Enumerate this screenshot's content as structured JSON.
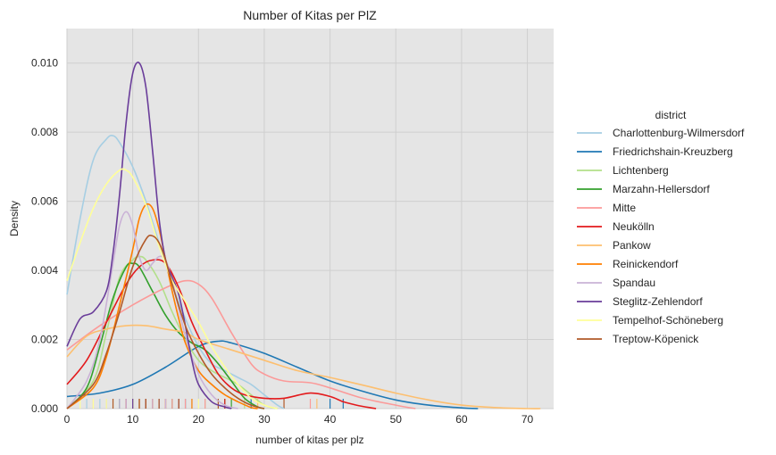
{
  "chart_data": {
    "type": "line",
    "title": "Number of Kitas per PlZ",
    "xlabel": "number of kitas per plz",
    "ylabel": "Density",
    "xlim": [
      0,
      74
    ],
    "ylim": [
      0,
      0.011
    ],
    "x_ticks": [
      0,
      10,
      20,
      30,
      40,
      50,
      60,
      70
    ],
    "y_ticks": [
      0.0,
      0.002,
      0.004,
      0.006,
      0.008,
      0.01
    ],
    "y_tick_labels": [
      "0.000",
      "0.002",
      "0.004",
      "0.006",
      "0.008",
      "0.010"
    ],
    "grid": true,
    "legend_placement": "right",
    "legend_title": "district",
    "series": [
      {
        "name": "Charlottenburg-Wilmersdorf",
        "color": "#a6cee3",
        "x": [
          0,
          2,
          4,
          6,
          7,
          8,
          10,
          12,
          14,
          16,
          18,
          20,
          22,
          24,
          26,
          28,
          30,
          32,
          33
        ],
        "y": [
          0.0033,
          0.0055,
          0.0072,
          0.0078,
          0.0079,
          0.0077,
          0.007,
          0.006,
          0.0048,
          0.0036,
          0.0026,
          0.0018,
          0.0013,
          0.0011,
          0.0009,
          0.0007,
          0.0004,
          0.0001,
          0.0
        ]
      },
      {
        "name": "Friedrichshain-Kreuzberg",
        "color": "#1f78b4",
        "x": [
          0,
          5,
          10,
          15,
          20,
          23,
          25,
          30,
          35,
          40,
          45,
          50,
          55,
          60,
          62.5
        ],
        "y": [
          0.00035,
          0.00045,
          0.0007,
          0.0012,
          0.0018,
          0.00195,
          0.0019,
          0.0016,
          0.0012,
          0.0008,
          0.0005,
          0.00025,
          0.0001,
          2e-05,
          0.0
        ]
      },
      {
        "name": "Lichtenberg",
        "color": "#b2df8a",
        "x": [
          0,
          4,
          6,
          8,
          10,
          11,
          12,
          14,
          16,
          18,
          20,
          22,
          24,
          26,
          28,
          30,
          32
        ],
        "y": [
          0.0,
          0.0008,
          0.0022,
          0.0038,
          0.0043,
          0.0044,
          0.0043,
          0.0037,
          0.0028,
          0.002,
          0.0014,
          0.0011,
          0.0009,
          0.0007,
          0.0004,
          0.0001,
          0.0
        ]
      },
      {
        "name": "Marzahn-Hellersdorf",
        "color": "#33a02c",
        "x": [
          0,
          3,
          5,
          7,
          9,
          10,
          11,
          13,
          15,
          17,
          19,
          21,
          23,
          25,
          27,
          29,
          30
        ],
        "y": [
          0.0,
          0.0006,
          0.0018,
          0.0032,
          0.0041,
          0.0042,
          0.0041,
          0.0034,
          0.0027,
          0.0022,
          0.0019,
          0.0017,
          0.0013,
          0.0008,
          0.0003,
          5e-05,
          0.0
        ]
      },
      {
        "name": "Mitte",
        "color": "#fb9a99",
        "x": [
          0,
          5,
          10,
          15,
          18,
          20,
          22,
          25,
          28,
          30,
          33,
          37,
          40,
          45,
          50,
          53
        ],
        "y": [
          0.0017,
          0.0024,
          0.003,
          0.0035,
          0.0037,
          0.0036,
          0.0032,
          0.0022,
          0.0013,
          0.001,
          0.0008,
          0.00075,
          0.0006,
          0.0003,
          0.0001,
          0.0
        ]
      },
      {
        "name": "Neukölln",
        "color": "#e31a1c",
        "x": [
          0,
          3,
          6,
          9,
          11,
          13,
          15,
          17,
          19,
          21,
          23,
          25,
          27,
          30,
          33,
          37,
          40,
          42,
          44,
          46,
          47
        ],
        "y": [
          0.0007,
          0.0014,
          0.0025,
          0.0036,
          0.0041,
          0.0043,
          0.0042,
          0.0035,
          0.0025,
          0.0017,
          0.001,
          0.0006,
          0.0004,
          0.0003,
          0.0003,
          0.00045,
          0.00035,
          0.0002,
          0.0001,
          3e-05,
          0.0
        ]
      },
      {
        "name": "Pankow",
        "color": "#fdbf6f",
        "x": [
          0,
          3,
          6,
          9,
          12,
          15,
          18,
          20,
          25,
          30,
          35,
          40,
          45,
          50,
          55,
          60,
          65,
          70,
          72
        ],
        "y": [
          0.0015,
          0.0021,
          0.0023,
          0.0024,
          0.0024,
          0.0023,
          0.0022,
          0.002,
          0.0017,
          0.0014,
          0.0011,
          0.0009,
          0.00068,
          0.00045,
          0.00025,
          0.0001,
          3e-05,
          0.0,
          0.0
        ]
      },
      {
        "name": "Reinickendorf",
        "color": "#ff7f00",
        "x": [
          0,
          4,
          6,
          8,
          10,
          11,
          12,
          13,
          14,
          15,
          16,
          17,
          18,
          20,
          22,
          24,
          26,
          28,
          29
        ],
        "y": [
          0.0,
          0.0006,
          0.0015,
          0.003,
          0.0046,
          0.0055,
          0.0059,
          0.0058,
          0.0052,
          0.0043,
          0.0034,
          0.0026,
          0.0019,
          0.0011,
          0.0007,
          0.0004,
          0.0002,
          3e-05,
          0.0
        ]
      },
      {
        "name": "Spandau",
        "color": "#cab2d6",
        "x": [
          0,
          3,
          5,
          7,
          8,
          9,
          10,
          11,
          12,
          13,
          14,
          15,
          16,
          18,
          20,
          22,
          24,
          26
        ],
        "y": [
          0.0,
          0.0008,
          0.002,
          0.0042,
          0.0053,
          0.0057,
          0.0053,
          0.0044,
          0.004,
          0.0042,
          0.0044,
          0.0043,
          0.0037,
          0.0021,
          0.001,
          0.0004,
          0.0001,
          0.0
        ]
      },
      {
        "name": "Steglitz-Zehlendorf",
        "color": "#6a3d9a",
        "x": [
          0,
          2,
          4,
          6,
          7,
          8,
          9,
          10,
          11,
          12,
          13,
          14,
          15,
          16,
          17,
          18,
          19,
          20,
          22,
          24,
          25
        ],
        "y": [
          0.0018,
          0.0026,
          0.0028,
          0.0034,
          0.0045,
          0.0062,
          0.0083,
          0.0097,
          0.01,
          0.0093,
          0.0075,
          0.0055,
          0.0043,
          0.0038,
          0.0033,
          0.0024,
          0.0014,
          0.0007,
          0.0002,
          5e-05,
          0.0
        ]
      },
      {
        "name": "Tempelhof-Schöneberg",
        "color": "#ffff99",
        "x": [
          0,
          2,
          4,
          6,
          8,
          9,
          10,
          12,
          14,
          16,
          18,
          20,
          22,
          24,
          26,
          28,
          30,
          32
        ],
        "y": [
          0.0037,
          0.0048,
          0.0058,
          0.0065,
          0.0069,
          0.0069,
          0.0067,
          0.0059,
          0.0047,
          0.0037,
          0.0031,
          0.0025,
          0.0018,
          0.0012,
          0.0007,
          0.0003,
          0.0001,
          0.0
        ]
      },
      {
        "name": "Treptow-Köpenick",
        "color": "#b15928",
        "x": [
          0,
          4,
          6,
          8,
          10,
          12,
          13,
          14,
          15,
          16,
          18,
          20,
          22,
          24,
          26,
          28,
          30
        ],
        "y": [
          0.0,
          0.0007,
          0.0016,
          0.0028,
          0.0041,
          0.0049,
          0.005,
          0.0048,
          0.0043,
          0.0036,
          0.0024,
          0.0016,
          0.001,
          0.0006,
          0.0003,
          0.0001,
          0.0
        ]
      }
    ],
    "rugs": [
      {
        "name": "Charlottenburg-Wilmersdorf",
        "color": "#a6cee3",
        "x": [
          3,
          5,
          6,
          7,
          9,
          14,
          19
        ]
      },
      {
        "name": "Friedrichshain-Kreuzberg",
        "color": "#1f78b4",
        "x": [
          8,
          18,
          28,
          40,
          42
        ]
      },
      {
        "name": "Lichtenberg",
        "color": "#b2df8a",
        "x": [
          9,
          11,
          12,
          21,
          27
        ]
      },
      {
        "name": "Marzahn-Hellersdorf",
        "color": "#33a02c",
        "x": [
          8,
          10,
          12,
          16,
          24,
          25
        ]
      },
      {
        "name": "Mitte",
        "color": "#fb9a99",
        "x": [
          13,
          16,
          18,
          21,
          37
        ]
      },
      {
        "name": "Neukölln",
        "color": "#e31a1c",
        "x": [
          9,
          12,
          13,
          15,
          24
        ]
      },
      {
        "name": "Pankow",
        "color": "#fdbf6f",
        "x": [
          4,
          10,
          17,
          29,
          38
        ]
      },
      {
        "name": "Reinickendorf",
        "color": "#ff7f00",
        "x": [
          11,
          12,
          13,
          15,
          19
        ]
      },
      {
        "name": "Spandau",
        "color": "#cab2d6",
        "x": [
          6,
          8,
          9,
          13,
          15
        ]
      },
      {
        "name": "Steglitz-Zehlendorf",
        "color": "#6a3d9a",
        "x": [
          10,
          11,
          12,
          14,
          17
        ]
      },
      {
        "name": "Tempelhof-Schöneberg",
        "color": "#ffff99",
        "x": [
          2,
          4,
          6,
          7,
          11,
          20
        ]
      },
      {
        "name": "Treptow-Köpenick",
        "color": "#b15928",
        "x": [
          7,
          11,
          12,
          14,
          17,
          23,
          33
        ]
      }
    ]
  }
}
